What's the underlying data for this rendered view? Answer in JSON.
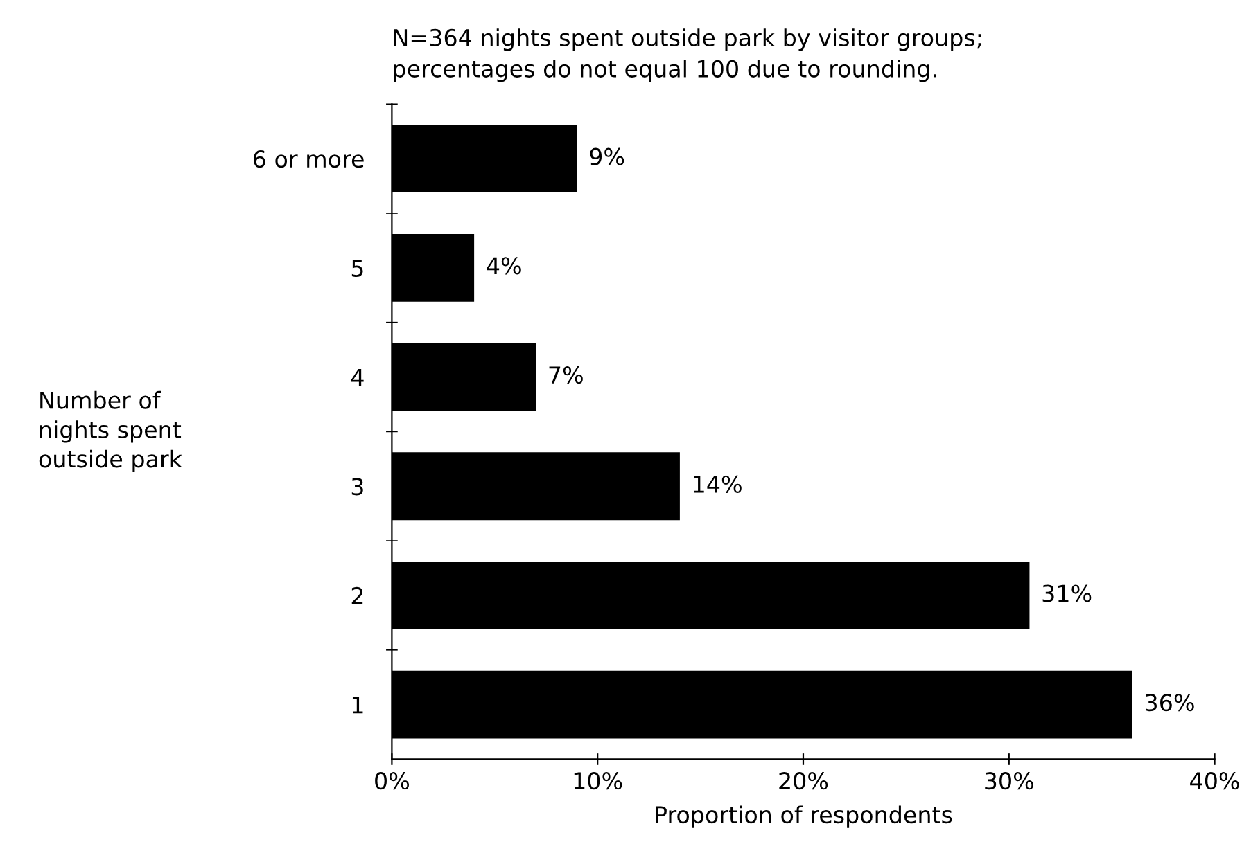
{
  "chart_data": {
    "type": "bar",
    "orientation": "horizontal",
    "title": "N=364 nights spent outside park by visitor groups;\npercentages do not equal 100 due to rounding.",
    "xlabel": "Proportion of respondents",
    "ylabel": "Number of\nnights spent\noutside park",
    "categories": [
      "6 or more",
      "5",
      "4",
      "3",
      "2",
      "1"
    ],
    "values": [
      9,
      4,
      7,
      14,
      31,
      36
    ],
    "value_labels": [
      "9%",
      "4%",
      "7%",
      "14%",
      "31%",
      "36%"
    ],
    "color": "#000000",
    "xlim": [
      0,
      40
    ],
    "xticks": [
      {
        "value": 0,
        "label": "0%"
      },
      {
        "value": 10,
        "label": "10%"
      },
      {
        "value": 20,
        "label": "20%"
      },
      {
        "value": 30,
        "label": "30%"
      },
      {
        "value": 40,
        "label": "40%"
      }
    ]
  }
}
